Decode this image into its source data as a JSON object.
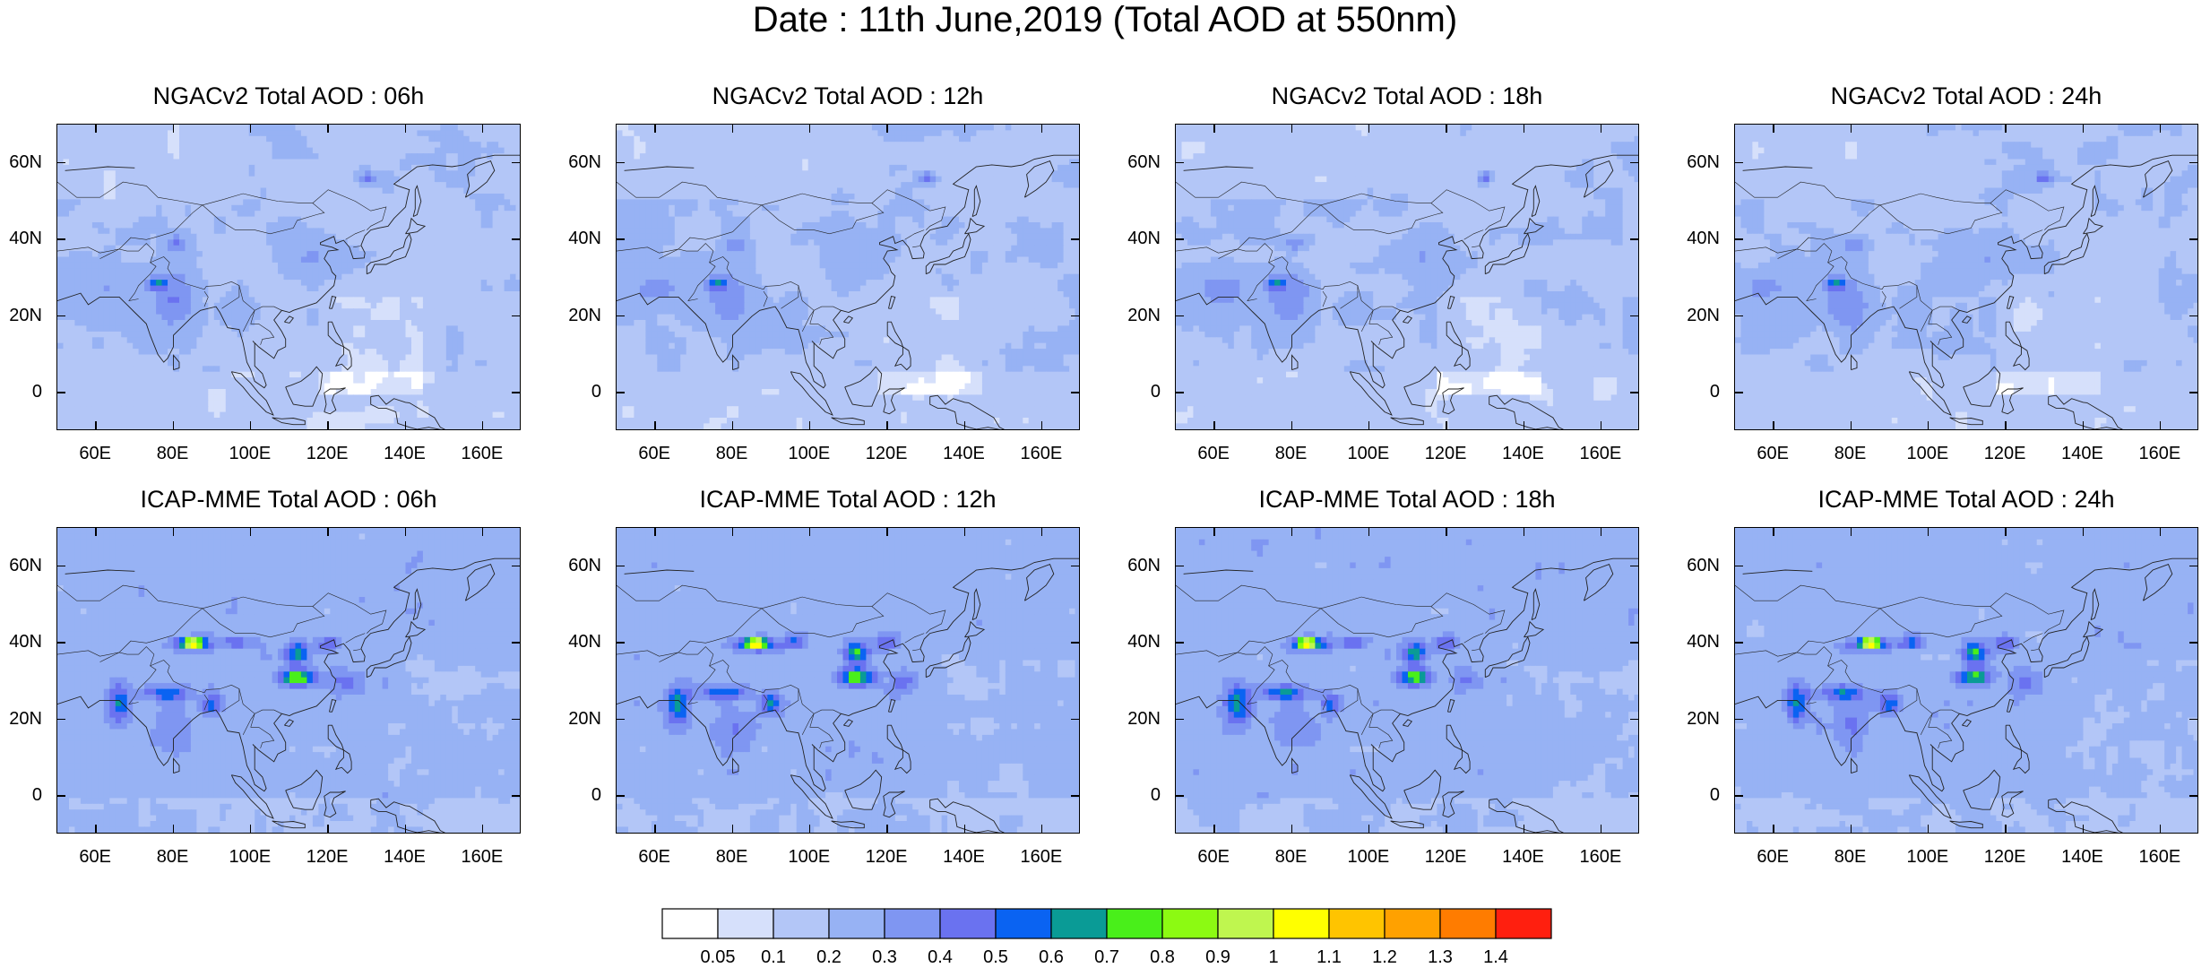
{
  "figure": {
    "title": "Date : 11th June,2019 (Total AOD at 550nm)"
  },
  "axes": {
    "lat_ticks": [
      "60N",
      "40N",
      "20N",
      "0"
    ],
    "lat_values": [
      60,
      40,
      20,
      0
    ],
    "lon_ticks": [
      "60E",
      "80E",
      "100E",
      "120E",
      "140E",
      "160E"
    ],
    "lon_values": [
      60,
      80,
      100,
      120,
      140,
      160
    ],
    "lon_range": [
      50,
      170
    ],
    "lat_range": [
      -10,
      70
    ]
  },
  "panels": [
    {
      "title": "NGACv2 Total AOD : 06h",
      "model": "NGACv2",
      "hour": "06h"
    },
    {
      "title": "NGACv2 Total AOD : 12h",
      "model": "NGACv2",
      "hour": "12h"
    },
    {
      "title": "NGACv2 Total AOD : 18h",
      "model": "NGACv2",
      "hour": "18h"
    },
    {
      "title": "NGACv2 Total AOD : 24h",
      "model": "NGACv2",
      "hour": "24h"
    },
    {
      "title": "ICAP-MME Total AOD : 06h",
      "model": "ICAP-MME",
      "hour": "06h"
    },
    {
      "title": "ICAP-MME Total AOD : 12h",
      "model": "ICAP-MME",
      "hour": "12h"
    },
    {
      "title": "ICAP-MME Total AOD : 18h",
      "model": "ICAP-MME",
      "hour": "18h"
    },
    {
      "title": "ICAP-MME Total AOD : 24h",
      "model": "ICAP-MME",
      "hour": "24h"
    }
  ],
  "colorbar": {
    "labels": [
      "0.05",
      "0.1",
      "0.2",
      "0.3",
      "0.4",
      "0.5",
      "0.6",
      "0.7",
      "0.8",
      "0.9",
      "1",
      "1.1",
      "1.2",
      "1.3",
      "1.4"
    ],
    "colors": [
      "#ffffff",
      "#d6e0fb",
      "#b3c6f7",
      "#97b2f4",
      "#7f96f2",
      "#6a72f0",
      "#0a63f2",
      "#0a9b96",
      "#49ef1a",
      "#8cfa12",
      "#bff64f",
      "#ffff00",
      "#ffc400",
      "#ffa100",
      "#ff7c00",
      "#ff1f0f"
    ]
  }
}
